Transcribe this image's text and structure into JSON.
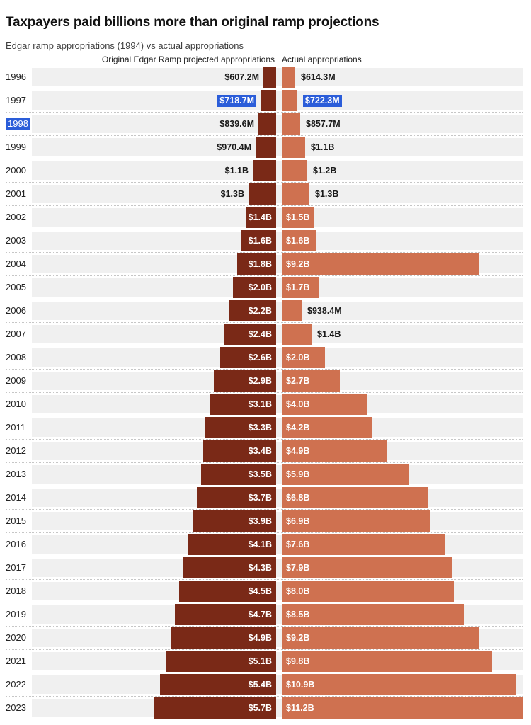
{
  "header": {
    "title": "Taxpayers paid billions more than original ramp projections",
    "subtitle": "Edgar ramp appropriations (1994) vs actual appropriations"
  },
  "columns": {
    "left": "Original Edgar Ramp projected appropriations",
    "right": "Actual appropriations"
  },
  "colors": {
    "projected": "#7a2917",
    "actual": "#cf7150",
    "track": "#f0f0f0",
    "separator": "#c6c6c6",
    "selection": "#2b5dd9",
    "label_dark": "#1a1a1a",
    "label_light": "#ffffff"
  },
  "chart_data": {
    "type": "bar",
    "variant": "diverging-horizontal-butterfly",
    "unit": "USD",
    "series": [
      {
        "name": "Original Edgar Ramp projected appropriations",
        "color": "#7a2917",
        "direction": "left"
      },
      {
        "name": "Actual appropriations",
        "color": "#cf7150",
        "direction": "right"
      }
    ],
    "value_axis_billions_max": 11.2,
    "rows": [
      {
        "year": "1996",
        "projected_b": 0.6072,
        "actual_b": 0.6143,
        "projected_label": "$607.2M",
        "actual_label": "$614.3M",
        "projected_inside": false,
        "actual_inside": false
      },
      {
        "year": "1997",
        "projected_b": 0.7187,
        "actual_b": 0.7223,
        "projected_label": "$718.7M",
        "actual_label": "$722.3M",
        "projected_inside": false,
        "actual_inside": false,
        "projected_selected": true,
        "actual_selected": true
      },
      {
        "year": "1998",
        "projected_b": 0.8396,
        "actual_b": 0.8577,
        "projected_label": "$839.6M",
        "actual_label": "$857.7M",
        "projected_inside": false,
        "actual_inside": false,
        "year_selected": true
      },
      {
        "year": "1999",
        "projected_b": 0.9704,
        "actual_b": 1.1,
        "projected_label": "$970.4M",
        "actual_label": "$1.1B",
        "projected_inside": false,
        "actual_inside": false
      },
      {
        "year": "2000",
        "projected_b": 1.1,
        "actual_b": 1.2,
        "projected_label": "$1.1B",
        "actual_label": "$1.2B",
        "projected_inside": false,
        "actual_inside": false
      },
      {
        "year": "2001",
        "projected_b": 1.3,
        "actual_b": 1.3,
        "projected_label": "$1.3B",
        "actual_label": "$1.3B",
        "projected_inside": false,
        "actual_inside": false
      },
      {
        "year": "2002",
        "projected_b": 1.4,
        "actual_b": 1.5,
        "projected_label": "$1.4B",
        "actual_label": "$1.5B",
        "projected_inside": true,
        "actual_inside": true
      },
      {
        "year": "2003",
        "projected_b": 1.6,
        "actual_b": 1.6,
        "projected_label": "$1.6B",
        "actual_label": "$1.6B",
        "projected_inside": true,
        "actual_inside": true
      },
      {
        "year": "2004",
        "projected_b": 1.8,
        "actual_b": 9.2,
        "projected_label": "$1.8B",
        "actual_label": "$9.2B",
        "projected_inside": true,
        "actual_inside": true
      },
      {
        "year": "2005",
        "projected_b": 2.0,
        "actual_b": 1.7,
        "projected_label": "$2.0B",
        "actual_label": "$1.7B",
        "projected_inside": true,
        "actual_inside": true
      },
      {
        "year": "2006",
        "projected_b": 2.2,
        "actual_b": 0.9384,
        "projected_label": "$2.2B",
        "actual_label": "$938.4M",
        "projected_inside": true,
        "actual_inside": false
      },
      {
        "year": "2007",
        "projected_b": 2.4,
        "actual_b": 1.4,
        "projected_label": "$2.4B",
        "actual_label": "$1.4B",
        "projected_inside": true,
        "actual_inside": false
      },
      {
        "year": "2008",
        "projected_b": 2.6,
        "actual_b": 2.0,
        "projected_label": "$2.6B",
        "actual_label": "$2.0B",
        "projected_inside": true,
        "actual_inside": true
      },
      {
        "year": "2009",
        "projected_b": 2.9,
        "actual_b": 2.7,
        "projected_label": "$2.9B",
        "actual_label": "$2.7B",
        "projected_inside": true,
        "actual_inside": true
      },
      {
        "year": "2010",
        "projected_b": 3.1,
        "actual_b": 4.0,
        "projected_label": "$3.1B",
        "actual_label": "$4.0B",
        "projected_inside": true,
        "actual_inside": true
      },
      {
        "year": "2011",
        "projected_b": 3.3,
        "actual_b": 4.2,
        "projected_label": "$3.3B",
        "actual_label": "$4.2B",
        "projected_inside": true,
        "actual_inside": true
      },
      {
        "year": "2012",
        "projected_b": 3.4,
        "actual_b": 4.9,
        "projected_label": "$3.4B",
        "actual_label": "$4.9B",
        "projected_inside": true,
        "actual_inside": true
      },
      {
        "year": "2013",
        "projected_b": 3.5,
        "actual_b": 5.9,
        "projected_label": "$3.5B",
        "actual_label": "$5.9B",
        "projected_inside": true,
        "actual_inside": true
      },
      {
        "year": "2014",
        "projected_b": 3.7,
        "actual_b": 6.8,
        "projected_label": "$3.7B",
        "actual_label": "$6.8B",
        "projected_inside": true,
        "actual_inside": true
      },
      {
        "year": "2015",
        "projected_b": 3.9,
        "actual_b": 6.9,
        "projected_label": "$3.9B",
        "actual_label": "$6.9B",
        "projected_inside": true,
        "actual_inside": true
      },
      {
        "year": "2016",
        "projected_b": 4.1,
        "actual_b": 7.6,
        "projected_label": "$4.1B",
        "actual_label": "$7.6B",
        "projected_inside": true,
        "actual_inside": true
      },
      {
        "year": "2017",
        "projected_b": 4.3,
        "actual_b": 7.9,
        "projected_label": "$4.3B",
        "actual_label": "$7.9B",
        "projected_inside": true,
        "actual_inside": true
      },
      {
        "year": "2018",
        "projected_b": 4.5,
        "actual_b": 8.0,
        "projected_label": "$4.5B",
        "actual_label": "$8.0B",
        "projected_inside": true,
        "actual_inside": true
      },
      {
        "year": "2019",
        "projected_b": 4.7,
        "actual_b": 8.5,
        "projected_label": "$4.7B",
        "actual_label": "$8.5B",
        "projected_inside": true,
        "actual_inside": true
      },
      {
        "year": "2020",
        "projected_b": 4.9,
        "actual_b": 9.2,
        "projected_label": "$4.9B",
        "actual_label": "$9.2B",
        "projected_inside": true,
        "actual_inside": true
      },
      {
        "year": "2021",
        "projected_b": 5.1,
        "actual_b": 9.8,
        "projected_label": "$5.1B",
        "actual_label": "$9.8B",
        "projected_inside": true,
        "actual_inside": true
      },
      {
        "year": "2022",
        "projected_b": 5.4,
        "actual_b": 10.9,
        "projected_label": "$5.4B",
        "actual_label": "$10.9B",
        "projected_inside": true,
        "actual_inside": true
      },
      {
        "year": "2023",
        "projected_b": 5.7,
        "actual_b": 11.2,
        "projected_label": "$5.7B",
        "actual_label": "$11.2B",
        "projected_inside": true,
        "actual_inside": true
      }
    ]
  }
}
